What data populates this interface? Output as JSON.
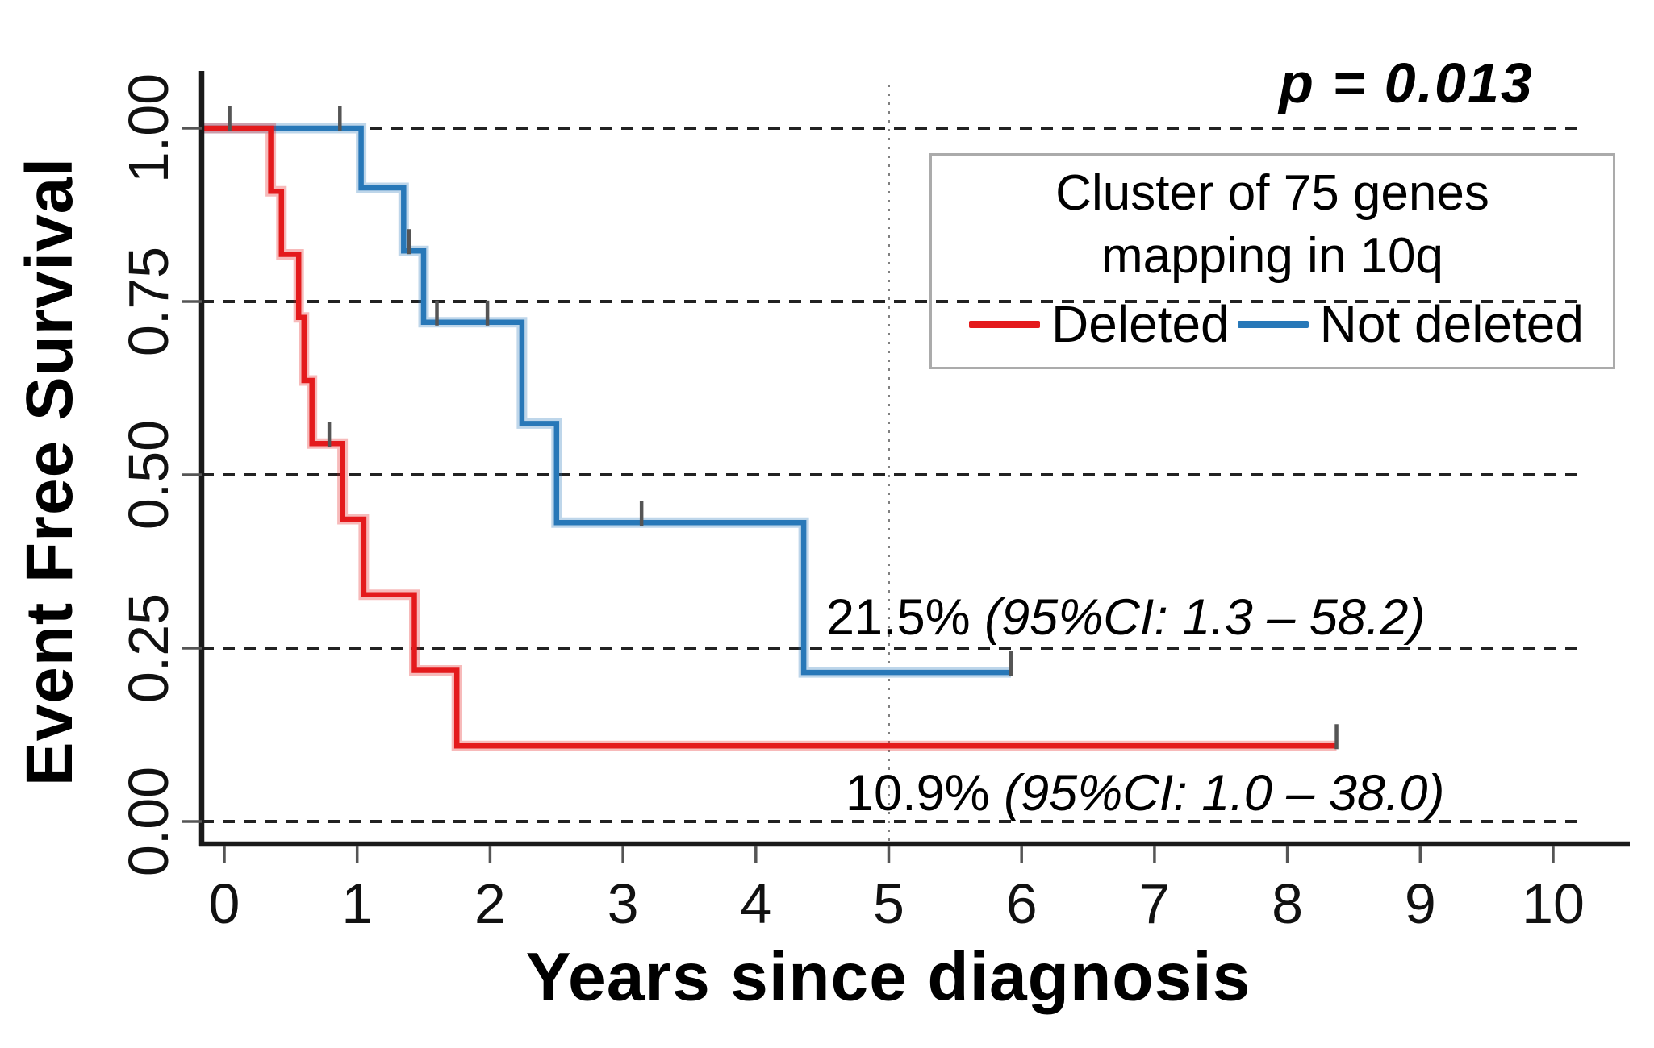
{
  "figure": {
    "p_value": "p = 0.013",
    "y_axis_title": "Event Free Survival",
    "x_axis_title": "Years since diagnosis",
    "legend": {
      "title_line1": "Cluster of 75 genes",
      "title_line2": "mapping in 10q",
      "entries": [
        {
          "label": "Deleted",
          "color": "#e41a1c"
        },
        {
          "label": "Not deleted",
          "color": "#2878b8"
        }
      ]
    },
    "annotations": [
      {
        "percent": "21.5% ",
        "ci": "(95%CI: 1.3 – 58.2)"
      },
      {
        "percent": "10.9% ",
        "ci": "(95%CI: 1.0 – 38.0)"
      }
    ]
  },
  "chart_data": {
    "type": "line",
    "subtype": "kaplan-meier-step-curves",
    "title": "",
    "xlabel": "Years since diagnosis",
    "ylabel": "Event Free Survival",
    "x_axis": {
      "ticks": [
        0,
        1,
        2,
        3,
        4,
        5,
        6,
        7,
        8,
        9,
        10
      ],
      "range": [
        0,
        10.6
      ]
    },
    "y_axis": {
      "tick_values": [
        1.0,
        0.75,
        0.5,
        0.25,
        0.0
      ],
      "tick_labels": [
        "1.00",
        "0.75",
        "0.50",
        "0.25",
        "0.00"
      ],
      "range": [
        0,
        1
      ]
    },
    "gridlines": {
      "horizontal_at": [
        1.0,
        0.75,
        0.5,
        0.25,
        0.0
      ],
      "style": "dashed"
    },
    "reference_line": {
      "x": 5,
      "style": "dotted"
    },
    "p_value": "p = 0.013",
    "legend_position": "upper right",
    "series": [
      {
        "name": "Not deleted",
        "color": "#2878b8",
        "final_estimate": "21.5% (95%CI: 1.3 – 58.2)",
        "steps": [
          [
            0,
            1
          ],
          [
            1.03,
            1
          ],
          [
            1.03,
            0.914
          ],
          [
            1.35,
            0.914
          ],
          [
            1.35,
            0.823
          ],
          [
            1.5,
            0.823
          ],
          [
            1.5,
            0.72
          ],
          [
            2.24,
            0.72
          ],
          [
            2.24,
            0.574
          ],
          [
            2.5,
            0.574
          ],
          [
            2.5,
            0.431
          ],
          [
            4.36,
            0.431
          ],
          [
            4.36,
            0.215
          ],
          [
            5.92,
            0.215
          ]
        ],
        "censor_marks": [
          [
            0.87,
            1
          ],
          [
            1.39,
            0.823
          ],
          [
            1.6,
            0.72
          ],
          [
            1.98,
            0.72
          ],
          [
            3.14,
            0.431
          ],
          [
            5.92,
            0.215
          ]
        ]
      },
      {
        "name": "Deleted",
        "color": "#e41a1c",
        "final_estimate": "10.9% (95%CI: 1.0 – 38.0)",
        "steps": [
          [
            0,
            1
          ],
          [
            0.35,
            1
          ],
          [
            0.35,
            0.909
          ],
          [
            0.43,
            0.909
          ],
          [
            0.43,
            0.818
          ],
          [
            0.56,
            0.818
          ],
          [
            0.56,
            0.727
          ],
          [
            0.6,
            0.727
          ],
          [
            0.6,
            0.636
          ],
          [
            0.66,
            0.636
          ],
          [
            0.66,
            0.545
          ],
          [
            0.89,
            0.545
          ],
          [
            0.89,
            0.436
          ],
          [
            1.05,
            0.436
          ],
          [
            1.05,
            0.327
          ],
          [
            1.43,
            0.327
          ],
          [
            1.43,
            0.218
          ],
          [
            1.75,
            0.218
          ],
          [
            1.75,
            0.109
          ],
          [
            8.37,
            0.109
          ]
        ],
        "censor_marks": [
          [
            0.04,
            1
          ],
          [
            0.79,
            0.545
          ],
          [
            8.37,
            0.109
          ]
        ]
      }
    ],
    "style": {
      "grid_color": "#222222",
      "axis_color": "#1a1a1a",
      "tick_color": "#555555",
      "censor_color": "#555555",
      "ref_line_color": "#808080",
      "tick_label_color": "#111111"
    }
  }
}
